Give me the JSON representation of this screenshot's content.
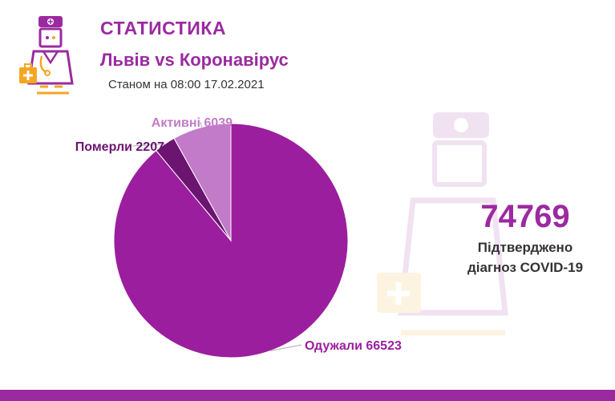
{
  "header": {
    "title": "СТАТИСТИКА",
    "subtitle": "Львів vs Коронавірус",
    "as_of": "Станом на 08:00 17.02.2021"
  },
  "summary": {
    "total": "74769",
    "caption_line1": "Підтверджено",
    "caption_line2": "діагноз COVID-19"
  },
  "colors": {
    "accent": "#9b2aa0",
    "recovered": "#9b1e9f",
    "deaths": "#6b1470",
    "active": "#c27bc8",
    "leader": "#aaaaaa"
  },
  "icons": {
    "logo": "doctor-icon",
    "watermark": "doctor-watermark-icon"
  },
  "chart_data": {
    "type": "pie",
    "title": "",
    "slices": [
      {
        "label": "Одужали 66523",
        "value": 66523,
        "color": "#9b1e9f"
      },
      {
        "label": "Померли 2207",
        "value": 2207,
        "color": "#6b1470"
      },
      {
        "label": "Активні 6039",
        "value": 6039,
        "color": "#c27bc8"
      }
    ]
  }
}
